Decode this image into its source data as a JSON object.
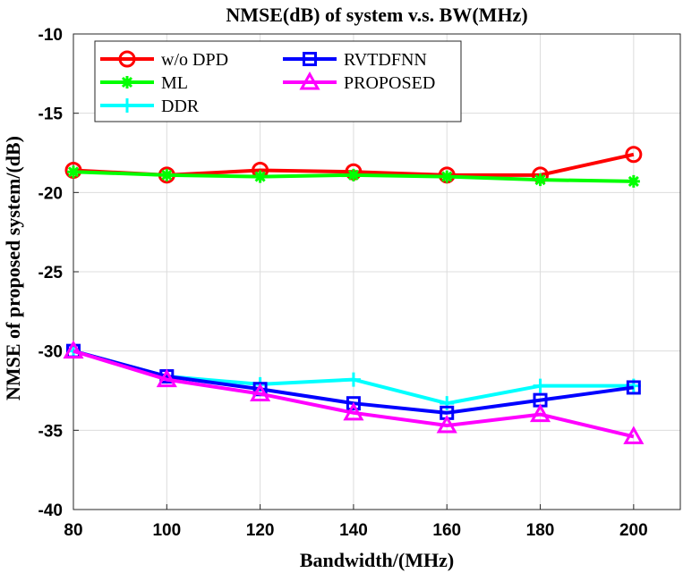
{
  "chart_data": {
    "type": "line",
    "title": "NMSE(dB) of system v.s. BW(MHz)",
    "xlabel": "Bandwidth/(MHz)",
    "ylabel": "NMSE of proposed system/(dB)",
    "xlim": [
      80,
      210
    ],
    "ylim": [
      -40,
      -10
    ],
    "xticks": [
      80,
      100,
      120,
      140,
      160,
      180,
      200
    ],
    "yticks": [
      -10,
      -15,
      -20,
      -25,
      -30,
      -35,
      -40
    ],
    "grid": true,
    "legend_position": "top-left",
    "x": [
      80,
      100,
      120,
      140,
      160,
      180,
      200
    ],
    "series": [
      {
        "name": "w/o DPD",
        "color": "#ff0000",
        "marker": "circle",
        "values": [
          -18.6,
          -18.9,
          -18.6,
          -18.7,
          -18.9,
          -18.9,
          -17.6
        ]
      },
      {
        "name": "ML",
        "color": "#00ff00",
        "marker": "asterisk",
        "values": [
          -18.7,
          -18.9,
          -19.0,
          -18.9,
          -19.0,
          -19.2,
          -19.3
        ]
      },
      {
        "name": "DDR",
        "color": "#00ffff",
        "marker": "plus",
        "values": [
          -30.0,
          -31.6,
          -32.1,
          -31.8,
          -33.3,
          -32.2,
          -32.2
        ]
      },
      {
        "name": "RVTDFNN",
        "color": "#0000ff",
        "marker": "square",
        "values": [
          -30.0,
          -31.6,
          -32.4,
          -33.3,
          -33.9,
          -33.1,
          -32.3
        ]
      },
      {
        "name": "PROPOSED",
        "color": "#ff00ff",
        "marker": "triangle",
        "values": [
          -30.0,
          -31.8,
          -32.7,
          -33.9,
          -34.7,
          -34.0,
          -35.4
        ]
      }
    ],
    "legend_order": [
      "w/o DPD",
      "RVTDFNN",
      "ML",
      "PROPOSED",
      "DDR"
    ]
  }
}
